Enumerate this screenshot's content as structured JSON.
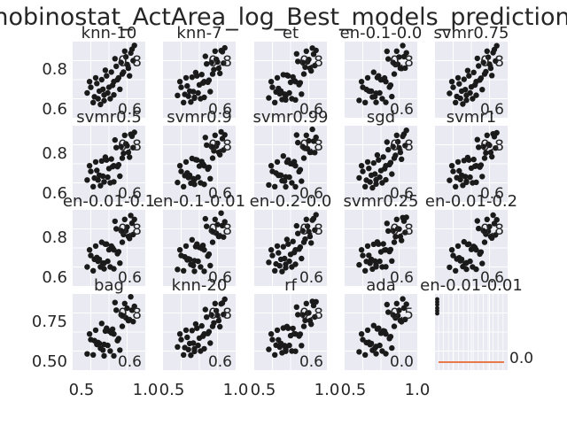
{
  "chart_data": {
    "type": "scatter",
    "title": "nobinostat_ActArea_log_Best_models_prediction",
    "background": "#eaeaf2",
    "marker_color": "#1a1a1a",
    "accent_color": "#e8794a",
    "grid": true,
    "row_yticks": [
      [
        "0.8",
        "0.6"
      ],
      [
        "0.8",
        "0.6"
      ],
      [
        "0.8",
        "0.6"
      ],
      [
        "0.75",
        "0.50"
      ]
    ],
    "col_xticks": [
      [
        "0.5",
        "1.0"
      ],
      [
        "0.5",
        "1.0"
      ],
      [
        "0.5",
        "1.0"
      ],
      [
        "0.5",
        "1.0"
      ]
    ],
    "panels": [
      {
        "title": "knn-10",
        "overlay": [
          "0.8",
          "0.6"
        ]
      },
      {
        "title": "knn-7",
        "overlay": [
          "0.8",
          "0.6"
        ]
      },
      {
        "title": "et",
        "overlay": [
          "0.8",
          "0.6"
        ]
      },
      {
        "title": "en-0.1-0.0",
        "overlay": [
          "0.8",
          "0.6"
        ]
      },
      {
        "title": "svmr0.75",
        "overlay": [
          "0.8",
          "0.6"
        ]
      },
      {
        "title": "svmr0.5",
        "overlay": [
          "0.8",
          "0.6"
        ]
      },
      {
        "title": "svmr0.9",
        "overlay": [
          "0.8",
          "0.6"
        ]
      },
      {
        "title": "svmr0.99",
        "overlay": [
          "0.8",
          "0.6"
        ]
      },
      {
        "title": "sgd",
        "overlay": [
          "0.8",
          "0.6"
        ]
      },
      {
        "title": "svmr1",
        "overlay": [
          "0.8",
          "0.6"
        ]
      },
      {
        "title": "en-0.01-0.1",
        "overlay": [
          "0.8",
          "0.6"
        ]
      },
      {
        "title": "en-0.1-0.01",
        "overlay": [
          "0.8",
          "0.6"
        ]
      },
      {
        "title": "en-0.2-0.0",
        "overlay": [
          "0.8",
          "0.6"
        ]
      },
      {
        "title": "svmr0.25",
        "overlay": [
          "0.8",
          "0.6"
        ]
      },
      {
        "title": "en-0.01-0.2",
        "overlay": [
          "0.8",
          "0.6"
        ]
      },
      {
        "title": "bag",
        "overlay": [
          "0.8",
          "0.6"
        ]
      },
      {
        "title": "knn-20",
        "overlay": [
          "0.8",
          "0.6"
        ]
      },
      {
        "title": "rf",
        "overlay": [
          "0.8",
          "0.6"
        ]
      },
      {
        "title": "ada",
        "overlay": [
          "0.5",
          "0.0"
        ]
      },
      {
        "title": "en-0.01-0.01",
        "overlay": [
          "0.0"
        ],
        "type": "bar"
      }
    ],
    "x_range": [
      0.4,
      1.0
    ],
    "y_range": [
      0.5,
      0.9
    ],
    "points": [
      [
        0.52,
        0.63
      ],
      [
        0.55,
        0.66
      ],
      [
        0.58,
        0.61
      ],
      [
        0.6,
        0.68
      ],
      [
        0.62,
        0.64
      ],
      [
        0.64,
        0.7
      ],
      [
        0.66,
        0.62
      ],
      [
        0.68,
        0.72
      ],
      [
        0.7,
        0.66
      ],
      [
        0.72,
        0.74
      ],
      [
        0.74,
        0.69
      ],
      [
        0.76,
        0.77
      ],
      [
        0.78,
        0.71
      ],
      [
        0.8,
        0.79
      ],
      [
        0.82,
        0.74
      ],
      [
        0.84,
        0.82
      ],
      [
        0.86,
        0.76
      ],
      [
        0.88,
        0.84
      ],
      [
        0.9,
        0.8
      ],
      [
        0.57,
        0.58
      ],
      [
        0.61,
        0.6
      ],
      [
        0.65,
        0.65
      ],
      [
        0.69,
        0.63
      ],
      [
        0.73,
        0.67
      ],
      [
        0.77,
        0.7
      ],
      [
        0.81,
        0.73
      ],
      [
        0.85,
        0.78
      ],
      [
        0.89,
        0.86
      ],
      [
        0.54,
        0.69
      ],
      [
        0.63,
        0.57
      ],
      [
        0.67,
        0.75
      ],
      [
        0.71,
        0.6
      ],
      [
        0.75,
        0.81
      ],
      [
        0.79,
        0.65
      ],
      [
        0.83,
        0.85
      ],
      [
        0.87,
        0.72
      ],
      [
        0.91,
        0.88
      ],
      [
        0.59,
        0.71
      ],
      [
        0.66,
        0.59
      ],
      [
        0.74,
        0.62
      ]
    ]
  }
}
